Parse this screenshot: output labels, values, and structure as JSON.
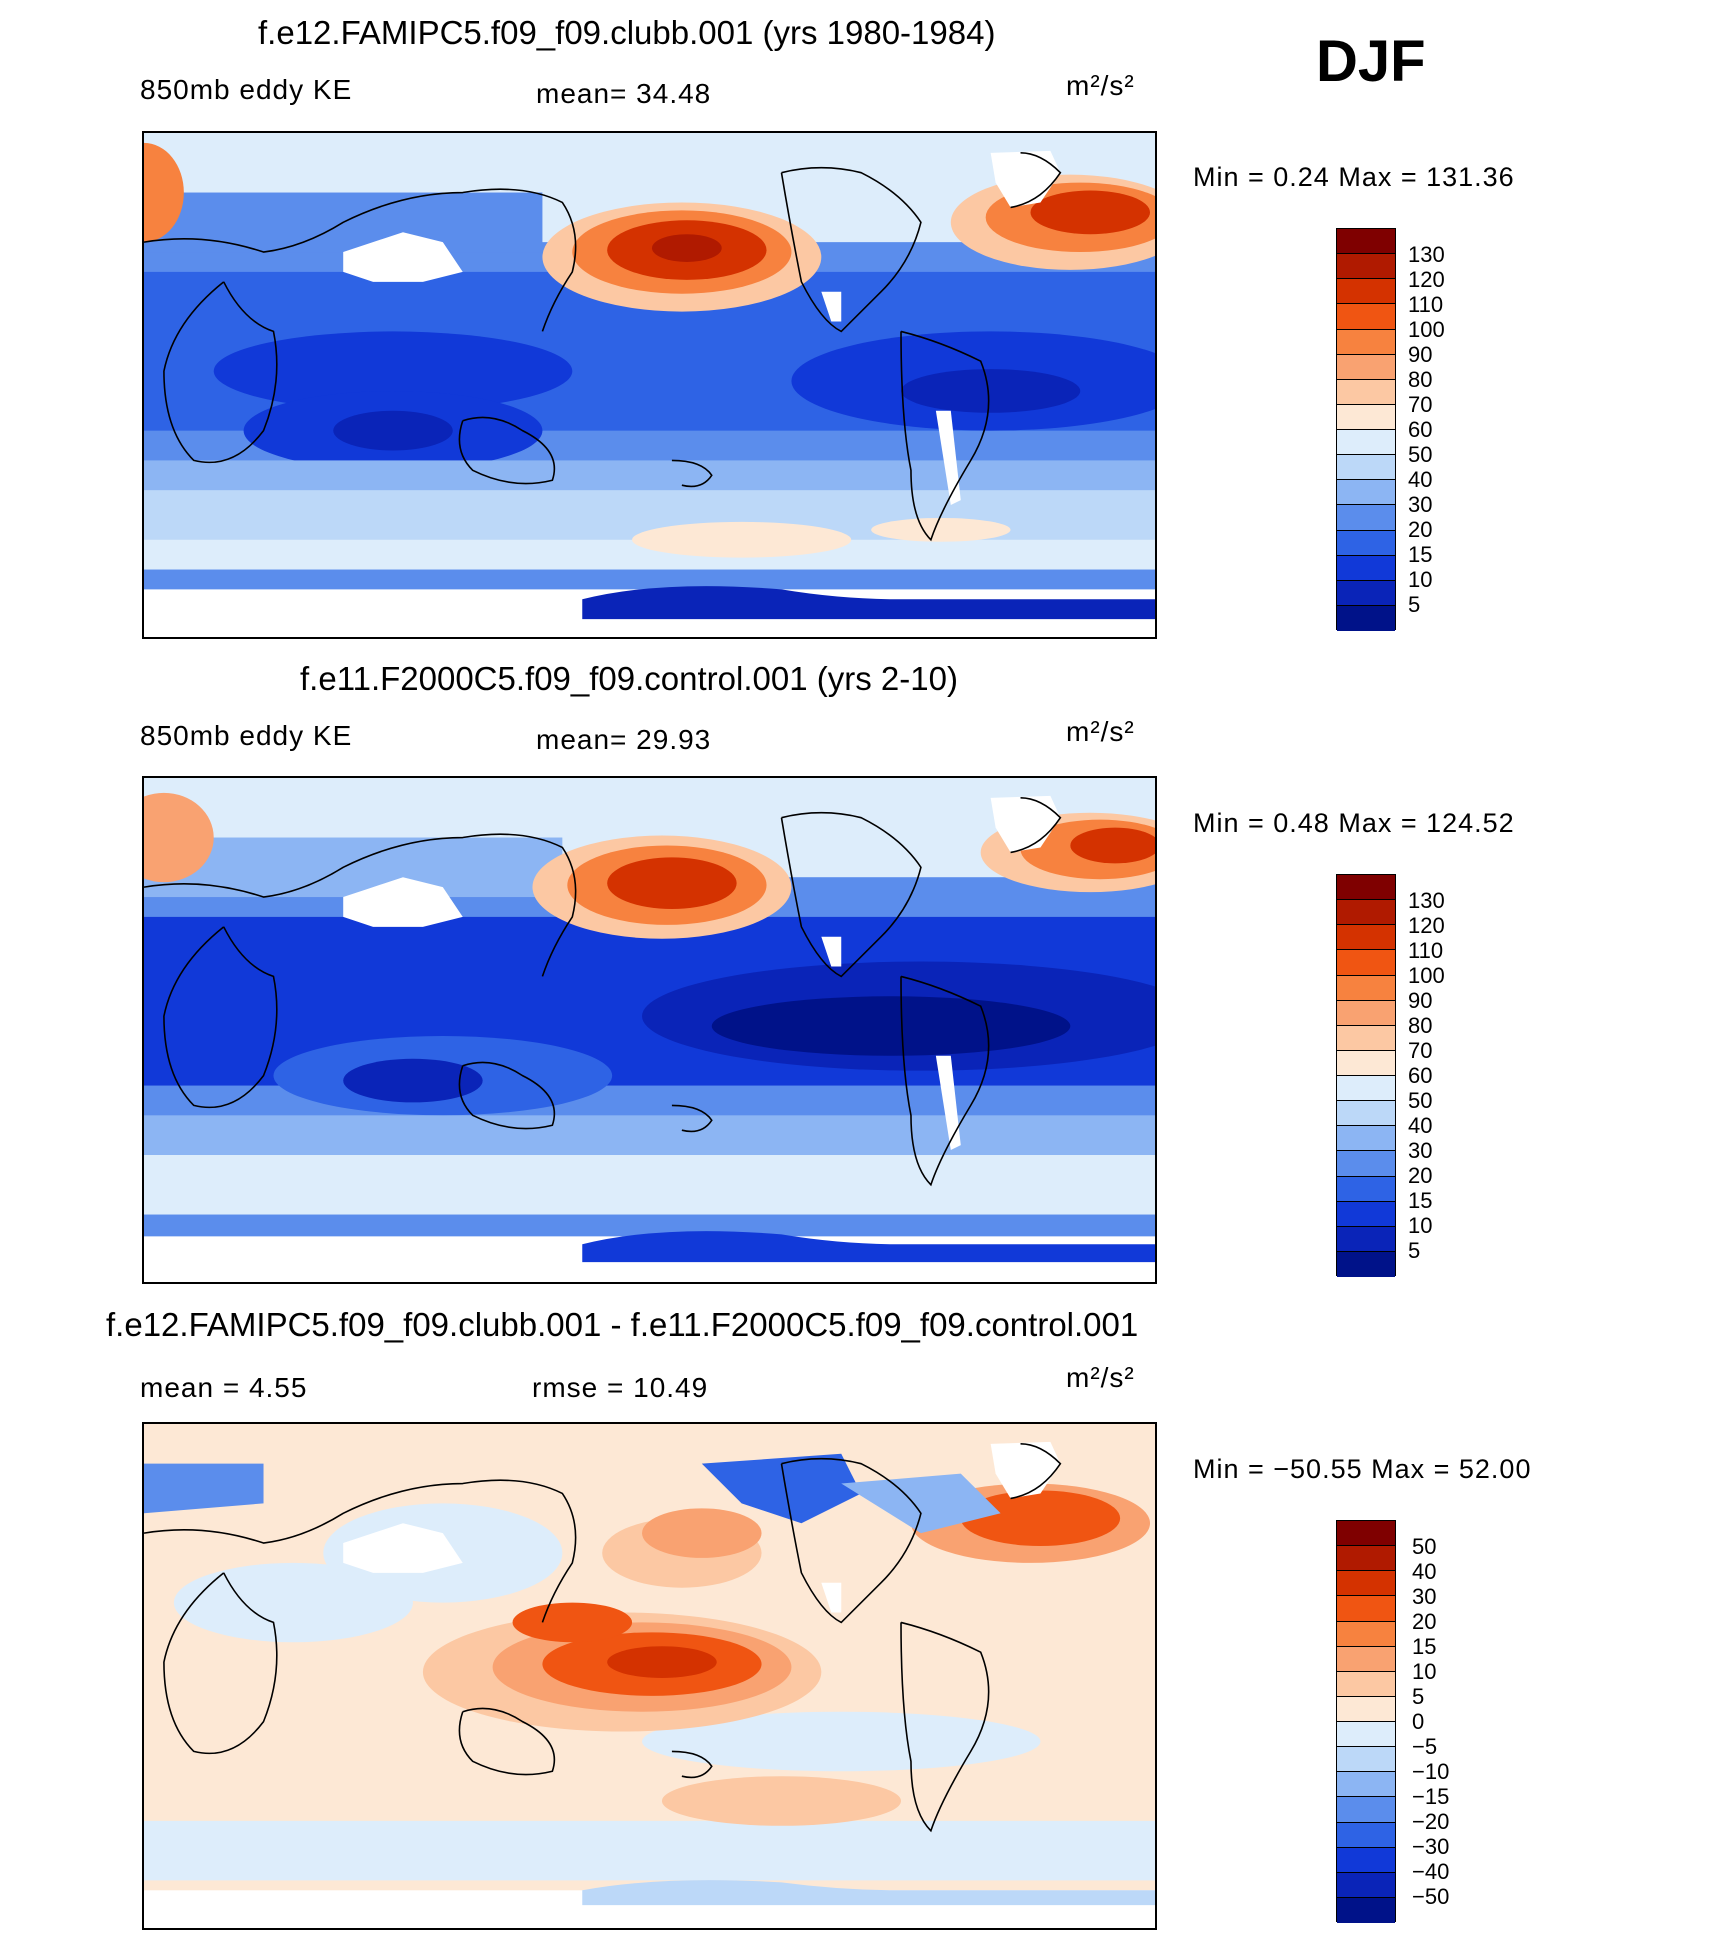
{
  "season": "DJF",
  "panels": [
    {
      "id": "clubb",
      "title": "f.e12.FAMIPC5.f09_f09.clubb.001 (yrs 1980-1984)",
      "left_label": "850mb eddy KE",
      "center_label": "mean=   34.48",
      "units": "m²/s²",
      "minmax": "Min  =     0.24  Max  =  131.36",
      "levels": [
        "130",
        "120",
        "110",
        "100",
        "90",
        "80",
        "70",
        "60",
        "50",
        "40",
        "30",
        "20",
        "15",
        "10",
        "5"
      ],
      "colors": [
        "#7f0000",
        "#b01a00",
        "#d43200",
        "#f05512",
        "#f7823f",
        "#f9a271",
        "#fcc8a3",
        "#fde8d5",
        "#ddedfb",
        "#bcd8f8",
        "#8cb5f3",
        "#5b8dec",
        "#2e63e5",
        "#1139d8",
        "#0a24b8",
        "#001289"
      ]
    },
    {
      "id": "control",
      "title": "f.e11.F2000C5.f09_f09.control.001 (yrs 2-10)",
      "left_label": "850mb eddy KE",
      "center_label": "mean=   29.93",
      "units": "m²/s²",
      "minmax": "Min  =     0.48  Max  =  124.52",
      "levels": [
        "130",
        "120",
        "110",
        "100",
        "90",
        "80",
        "70",
        "60",
        "50",
        "40",
        "30",
        "20",
        "15",
        "10",
        "5"
      ],
      "colors": [
        "#7f0000",
        "#b01a00",
        "#d43200",
        "#f05512",
        "#f7823f",
        "#f9a271",
        "#fcc8a3",
        "#fde8d5",
        "#ddedfb",
        "#bcd8f8",
        "#8cb5f3",
        "#5b8dec",
        "#2e63e5",
        "#1139d8",
        "#0a24b8",
        "#001289"
      ]
    },
    {
      "id": "diff",
      "title": "f.e12.FAMIPC5.f09_f09.clubb.001 - f.e11.F2000C5.f09_f09.control.001",
      "left_label": "mean  =     4.55",
      "center_label": "rmse  =    10.49",
      "units": "m²/s²",
      "minmax": "Min  = −50.55  Max  =    52.00",
      "levels": [
        "50",
        "40",
        "30",
        "20",
        "15",
        "10",
        "5",
        "0",
        "−5",
        "−10",
        "−15",
        "−20",
        "−30",
        "−40",
        "−50"
      ],
      "colors": [
        "#7f0000",
        "#b01a00",
        "#d43200",
        "#f05512",
        "#f7823f",
        "#f9a271",
        "#fcc8a3",
        "#fde8d5",
        "#ddedfb",
        "#bcd8f8",
        "#8cb5f3",
        "#5b8dec",
        "#2e63e5",
        "#1139d8",
        "#0a24b8",
        "#001289"
      ]
    }
  ]
}
